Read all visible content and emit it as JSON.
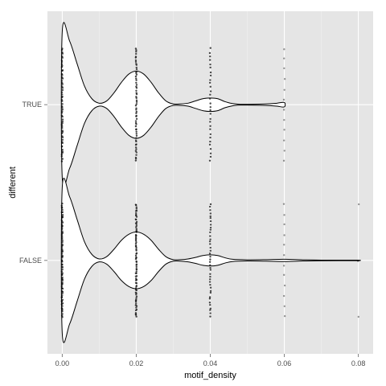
{
  "chart_data": {
    "type": "violin",
    "orientation": "horizontal",
    "xlabel": "motif_density",
    "ylabel": "different",
    "xlim": [
      -0.004,
      0.084
    ],
    "x_ticks": [
      {
        "value": 0.0,
        "label": "0.00"
      },
      {
        "value": 0.02,
        "label": "0.02"
      },
      {
        "value": 0.04,
        "label": "0.04"
      },
      {
        "value": 0.06,
        "label": "0.06"
      },
      {
        "value": 0.08,
        "label": "0.08"
      }
    ],
    "categories": [
      "FALSE",
      "TRUE"
    ],
    "series": [
      {
        "category": "TRUE",
        "x_range": [
          0.0,
          0.06
        ],
        "density_profile": [
          {
            "x": 0.0,
            "h": 0.98
          },
          {
            "x": 0.002,
            "h": 0.85
          },
          {
            "x": 0.004,
            "h": 0.55
          },
          {
            "x": 0.006,
            "h": 0.25
          },
          {
            "x": 0.008,
            "h": 0.08
          },
          {
            "x": 0.01,
            "h": 0.02
          },
          {
            "x": 0.012,
            "h": 0.05
          },
          {
            "x": 0.014,
            "h": 0.16
          },
          {
            "x": 0.016,
            "h": 0.3
          },
          {
            "x": 0.018,
            "h": 0.41
          },
          {
            "x": 0.02,
            "h": 0.45
          },
          {
            "x": 0.022,
            "h": 0.41
          },
          {
            "x": 0.024,
            "h": 0.3
          },
          {
            "x": 0.026,
            "h": 0.16
          },
          {
            "x": 0.028,
            "h": 0.05
          },
          {
            "x": 0.03,
            "h": 0.01
          },
          {
            "x": 0.032,
            "h": 0.01
          },
          {
            "x": 0.034,
            "h": 0.02
          },
          {
            "x": 0.036,
            "h": 0.05
          },
          {
            "x": 0.038,
            "h": 0.08
          },
          {
            "x": 0.04,
            "h": 0.09
          },
          {
            "x": 0.042,
            "h": 0.08
          },
          {
            "x": 0.044,
            "h": 0.04
          },
          {
            "x": 0.046,
            "h": 0.015
          },
          {
            "x": 0.048,
            "h": 0.005
          },
          {
            "x": 0.05,
            "h": 0.005
          },
          {
            "x": 0.055,
            "h": 0.01
          },
          {
            "x": 0.058,
            "h": 0.02
          },
          {
            "x": 0.06,
            "h": 0.03
          }
        ],
        "points": [
          {
            "x": 0.0,
            "count": 60,
            "spread": 0.72
          },
          {
            "x": 0.02,
            "count": 60,
            "spread": 0.72
          },
          {
            "x": 0.04,
            "count": 30,
            "spread": 0.72
          },
          {
            "x": 0.06,
            "count": 12,
            "spread": 0.72
          }
        ]
      },
      {
        "category": "FALSE",
        "x_range": [
          0.0,
          0.08
        ],
        "density_profile": [
          {
            "x": 0.0,
            "h": 0.98
          },
          {
            "x": 0.002,
            "h": 0.85
          },
          {
            "x": 0.004,
            "h": 0.55
          },
          {
            "x": 0.006,
            "h": 0.25
          },
          {
            "x": 0.008,
            "h": 0.08
          },
          {
            "x": 0.01,
            "h": 0.02
          },
          {
            "x": 0.012,
            "h": 0.05
          },
          {
            "x": 0.014,
            "h": 0.15
          },
          {
            "x": 0.016,
            "h": 0.27
          },
          {
            "x": 0.018,
            "h": 0.35
          },
          {
            "x": 0.02,
            "h": 0.38
          },
          {
            "x": 0.022,
            "h": 0.35
          },
          {
            "x": 0.024,
            "h": 0.27
          },
          {
            "x": 0.026,
            "h": 0.15
          },
          {
            "x": 0.028,
            "h": 0.05
          },
          {
            "x": 0.03,
            "h": 0.01
          },
          {
            "x": 0.032,
            "h": 0.01
          },
          {
            "x": 0.034,
            "h": 0.02
          },
          {
            "x": 0.036,
            "h": 0.04
          },
          {
            "x": 0.038,
            "h": 0.065
          },
          {
            "x": 0.04,
            "h": 0.075
          },
          {
            "x": 0.042,
            "h": 0.065
          },
          {
            "x": 0.044,
            "h": 0.035
          },
          {
            "x": 0.046,
            "h": 0.015
          },
          {
            "x": 0.05,
            "h": 0.008
          },
          {
            "x": 0.055,
            "h": 0.01
          },
          {
            "x": 0.06,
            "h": 0.015
          },
          {
            "x": 0.065,
            "h": 0.008
          },
          {
            "x": 0.07,
            "h": 0.004
          },
          {
            "x": 0.075,
            "h": 0.003
          },
          {
            "x": 0.08,
            "h": 0.003
          }
        ],
        "points": [
          {
            "x": 0.0,
            "count": 80,
            "spread": 0.72
          },
          {
            "x": 0.02,
            "count": 80,
            "spread": 0.72
          },
          {
            "x": 0.04,
            "count": 40,
            "spread": 0.72
          },
          {
            "x": 0.06,
            "count": 12,
            "spread": 0.72
          },
          {
            "x": 0.08,
            "count": 3,
            "spread": 0.72
          }
        ]
      }
    ],
    "grid": true,
    "panel_background": "#e5e5e5",
    "grid_color": "#ffffff",
    "violin_fill": "#ffffff",
    "violin_stroke": "#000000",
    "point_color": "#000000"
  }
}
